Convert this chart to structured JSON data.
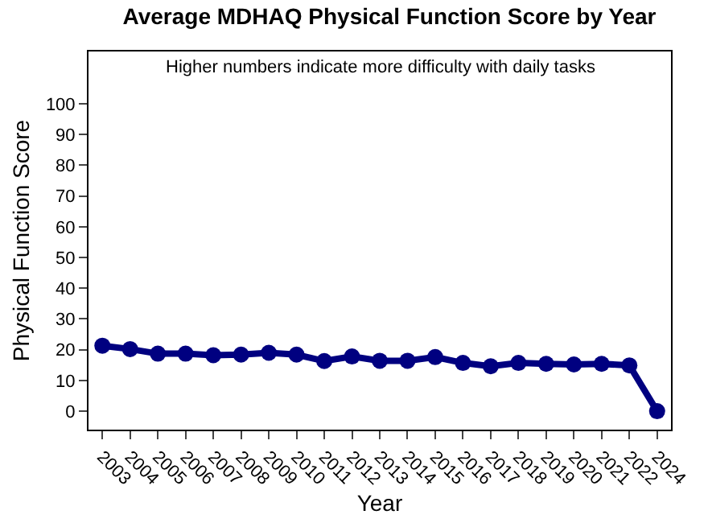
{
  "chart_data": {
    "type": "line",
    "title": "Average MDHAQ Physical Function Score by Year",
    "annotations": [
      "Higher numbers indicate more difficulty with daily tasks"
    ],
    "xlabel": "Year",
    "ylabel": "Physical Function Score",
    "categories": [
      "2003",
      "2004",
      "2005",
      "2006",
      "2007",
      "2008",
      "2009",
      "2010",
      "2011",
      "2012",
      "2013",
      "2014",
      "2015",
      "2016",
      "2017",
      "2018",
      "2019",
      "2020",
      "2021",
      "2022",
      "2024"
    ],
    "series": [
      {
        "color": "#000080",
        "values": [
          21.3,
          20.2,
          18.7,
          18.7,
          18.2,
          18.4,
          19.0,
          18.4,
          16.3,
          17.8,
          16.4,
          16.4,
          17.6,
          15.7,
          14.6,
          15.7,
          15.4,
          15.2,
          15.4,
          14.9,
          0
        ]
      }
    ],
    "ylim": [
      -6,
      117
    ],
    "yticks": [
      0,
      10,
      20,
      30,
      40,
      50,
      60,
      70,
      80,
      90,
      100
    ],
    "marker": "circle",
    "line_style": "solid"
  }
}
